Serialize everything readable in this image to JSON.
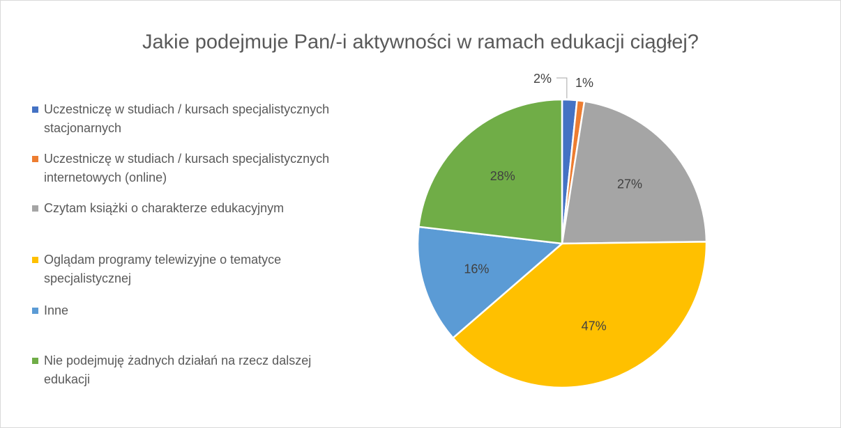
{
  "chart_data": {
    "type": "pie",
    "title": "Jakie podejmuje Pan/-i aktywności w ramach edukacji ciągłej?",
    "categories": [
      "Uczestniczę w studiach / kursach specjalistycznych stacjonarnych",
      "Uczestniczę w studiach / kursach specjalistycznych internetowych (online)",
      "Czytam książki o charakterze edukacyjnym",
      "Oglądam programy telewizyjne o tematyce specjalistycznej",
      "Inne",
      "Nie podejmuję żadnych działań na rzecz dalszej edukacji"
    ],
    "values": [
      2,
      1,
      27,
      47,
      16,
      28
    ],
    "value_labels": [
      "2%",
      "1%",
      "27%",
      "47%",
      "16%",
      "28%"
    ],
    "colors": [
      "#4472c4",
      "#ed7d31",
      "#a5a5a5",
      "#ffc000",
      "#5b9bd5",
      "#70ad47"
    ],
    "legend": "left"
  }
}
